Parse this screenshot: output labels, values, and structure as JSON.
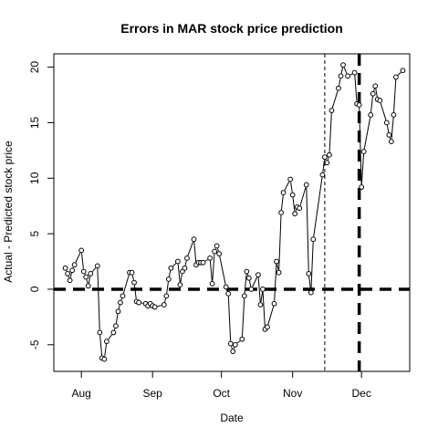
{
  "chart_data": {
    "type": "line",
    "title": "Errors in MAR stock price prediction",
    "xlabel": "Date",
    "ylabel": "Actual - Predicted stock price",
    "x_ticks": [
      {
        "label": "Aug",
        "date": "2016-08-01"
      },
      {
        "label": "Sep",
        "date": "2016-09-01"
      },
      {
        "label": "Oct",
        "date": "2016-10-01"
      },
      {
        "label": "Nov",
        "date": "2016-11-01"
      },
      {
        "label": "Dec",
        "date": "2016-12-01"
      }
    ],
    "y_ticks": [
      -5,
      0,
      5,
      10,
      15,
      20
    ],
    "xlim": [
      "2016-07-20",
      "2016-12-22"
    ],
    "ylim": [
      -7.4,
      21.2
    ],
    "hline": {
      "y": 0,
      "style": "thick-dashed"
    },
    "vlines": [
      {
        "date": "2016-11-15",
        "style": "thin-dashed"
      },
      {
        "date": "2016-11-30",
        "style": "thick-dashed"
      }
    ],
    "series": [
      {
        "style": "points-and-lines",
        "points": [
          {
            "date": "2016-07-25",
            "value": 1.9
          },
          {
            "date": "2016-07-26",
            "value": 1.4
          },
          {
            "date": "2016-07-27",
            "value": 0.8
          },
          {
            "date": "2016-07-28",
            "value": 1.7
          },
          {
            "date": "2016-07-29",
            "value": 2.2
          },
          {
            "date": "2016-08-01",
            "value": 3.5
          },
          {
            "date": "2016-08-02",
            "value": 1.6
          },
          {
            "date": "2016-08-03",
            "value": 1.1
          },
          {
            "date": "2016-08-04",
            "value": 0.3
          },
          {
            "date": "2016-08-05",
            "value": 1.4
          },
          {
            "date": "2016-08-08",
            "value": 2.1
          },
          {
            "date": "2016-08-09",
            "value": -3.9
          },
          {
            "date": "2016-08-10",
            "value": -6.2
          },
          {
            "date": "2016-08-11",
            "value": -6.3
          },
          {
            "date": "2016-08-12",
            "value": -4.7
          },
          {
            "date": "2016-08-15",
            "value": -3.9
          },
          {
            "date": "2016-08-16",
            "value": -3.3
          },
          {
            "date": "2016-08-17",
            "value": -2.0
          },
          {
            "date": "2016-08-18",
            "value": -1.2
          },
          {
            "date": "2016-08-19",
            "value": -0.6
          },
          {
            "date": "2016-08-22",
            "value": 1.5
          },
          {
            "date": "2016-08-23",
            "value": 1.5
          },
          {
            "date": "2016-08-24",
            "value": 0.6
          },
          {
            "date": "2016-08-25",
            "value": -1.1
          },
          {
            "date": "2016-08-26",
            "value": -1.2
          },
          {
            "date": "2016-08-29",
            "value": -1.3
          },
          {
            "date": "2016-08-30",
            "value": -1.5
          },
          {
            "date": "2016-08-31",
            "value": -1.3
          },
          {
            "date": "2016-09-01",
            "value": -1.5
          },
          {
            "date": "2016-09-02",
            "value": -1.6
          },
          {
            "date": "2016-09-06",
            "value": -1.4
          },
          {
            "date": "2016-09-07",
            "value": -0.6
          },
          {
            "date": "2016-09-08",
            "value": 0.9
          },
          {
            "date": "2016-09-09",
            "value": 1.9
          },
          {
            "date": "2016-09-12",
            "value": 2.5
          },
          {
            "date": "2016-09-13",
            "value": 0.4
          },
          {
            "date": "2016-09-14",
            "value": 1.6
          },
          {
            "date": "2016-09-15",
            "value": 1.9
          },
          {
            "date": "2016-09-16",
            "value": 2.8
          },
          {
            "date": "2016-09-19",
            "value": 4.5
          },
          {
            "date": "2016-09-20",
            "value": 2.2
          },
          {
            "date": "2016-09-21",
            "value": 2.4
          },
          {
            "date": "2016-09-22",
            "value": 2.4
          },
          {
            "date": "2016-09-23",
            "value": 2.4
          },
          {
            "date": "2016-09-26",
            "value": 2.8
          },
          {
            "date": "2016-09-27",
            "value": 0.5
          },
          {
            "date": "2016-09-28",
            "value": 3.4
          },
          {
            "date": "2016-09-29",
            "value": 3.9
          },
          {
            "date": "2016-09-30",
            "value": 3.2
          },
          {
            "date": "2016-10-03",
            "value": 0.2
          },
          {
            "date": "2016-10-04",
            "value": -0.4
          },
          {
            "date": "2016-10-05",
            "value": -4.9
          },
          {
            "date": "2016-10-06",
            "value": -5.6
          },
          {
            "date": "2016-10-07",
            "value": -5.0
          },
          {
            "date": "2016-10-10",
            "value": -4.5
          },
          {
            "date": "2016-10-11",
            "value": -0.6
          },
          {
            "date": "2016-10-12",
            "value": 1.6
          },
          {
            "date": "2016-10-13",
            "value": 1.0
          },
          {
            "date": "2016-10-14",
            "value": 0.0
          },
          {
            "date": "2016-10-17",
            "value": 1.3
          },
          {
            "date": "2016-10-18",
            "value": -1.4
          },
          {
            "date": "2016-10-19",
            "value": 0.0
          },
          {
            "date": "2016-10-20",
            "value": -3.6
          },
          {
            "date": "2016-10-21",
            "value": -3.4
          },
          {
            "date": "2016-10-24",
            "value": -1.3
          },
          {
            "date": "2016-10-25",
            "value": 2.5
          },
          {
            "date": "2016-10-26",
            "value": 1.5
          },
          {
            "date": "2016-10-27",
            "value": 6.9
          },
          {
            "date": "2016-10-28",
            "value": 8.7
          },
          {
            "date": "2016-10-31",
            "value": 9.9
          },
          {
            "date": "2016-11-01",
            "value": 8.5
          },
          {
            "date": "2016-11-02",
            "value": 6.8
          },
          {
            "date": "2016-11-03",
            "value": 7.4
          },
          {
            "date": "2016-11-04",
            "value": 7.3
          },
          {
            "date": "2016-11-07",
            "value": 9.4
          },
          {
            "date": "2016-11-08",
            "value": 1.4
          },
          {
            "date": "2016-11-09",
            "value": -0.3
          },
          {
            "date": "2016-11-10",
            "value": 4.5
          },
          {
            "date": "2016-11-14",
            "value": 10.3
          },
          {
            "date": "2016-11-15",
            "value": 11.9
          },
          {
            "date": "2016-11-16",
            "value": 11.4
          },
          {
            "date": "2016-11-17",
            "value": 12.1
          },
          {
            "date": "2016-11-18",
            "value": 16.1
          },
          {
            "date": "2016-11-21",
            "value": 18.1
          },
          {
            "date": "2016-11-22",
            "value": 19.2
          },
          {
            "date": "2016-11-23",
            "value": 20.2
          },
          {
            "date": "2016-11-25",
            "value": 19.2
          },
          {
            "date": "2016-11-28",
            "value": 19.5
          },
          {
            "date": "2016-11-29",
            "value": 16.7
          },
          {
            "date": "2016-11-30",
            "value": 16.6
          },
          {
            "date": "2016-12-01",
            "value": 9.2
          },
          {
            "date": "2016-12-02",
            "value": 12.4
          },
          {
            "date": "2016-12-05",
            "value": 15.7
          },
          {
            "date": "2016-12-06",
            "value": 17.6
          },
          {
            "date": "2016-12-07",
            "value": 18.3
          },
          {
            "date": "2016-12-08",
            "value": 17.1
          },
          {
            "date": "2016-12-09",
            "value": 17.0
          },
          {
            "date": "2016-12-12",
            "value": 15.0
          },
          {
            "date": "2016-12-13",
            "value": 13.9
          },
          {
            "date": "2016-12-14",
            "value": 13.3
          },
          {
            "date": "2016-12-15",
            "value": 15.7
          },
          {
            "date": "2016-12-16",
            "value": 19.1
          },
          {
            "date": "2016-12-19",
            "value": 19.7
          }
        ]
      }
    ]
  }
}
